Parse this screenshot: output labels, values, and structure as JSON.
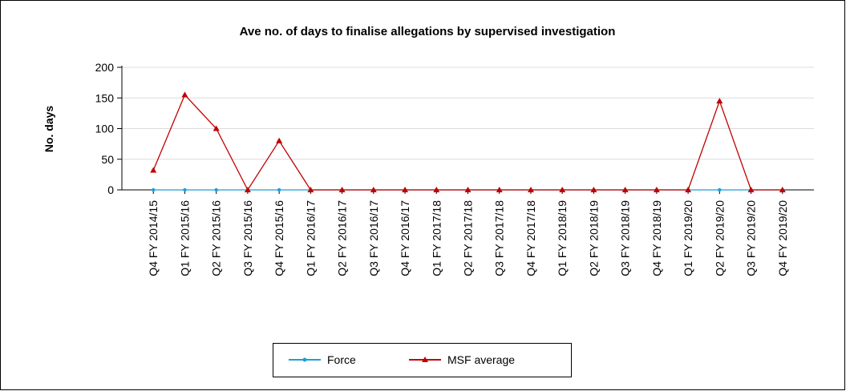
{
  "chart_data": {
    "type": "line",
    "title": "Ave no. of days to finalise allegations by supervised investigation",
    "y_label": "No. days",
    "categories": [
      "Q4 FY 2014/15",
      "Q1 FY 2015/16",
      "Q2 FY 2015/16",
      "Q3 FY 2015/16",
      "Q4 FY 2015/16",
      "Q1 FY 2016/17",
      "Q2 FY 2016/17",
      "Q3 FY 2016/17",
      "Q4 FY 2016/17",
      "Q1 FY 2017/18",
      "Q2 FY 2017/18",
      "Q3 FY 2017/18",
      "Q4 FY 2017/18",
      "Q1 FY 2018/19",
      "Q2 FY 2018/19",
      "Q3 FY 2018/19",
      "Q4 FY 2018/19",
      "Q1 FY 2019/20",
      "Q2 FY 2019/20",
      "Q3 FY 2019/20",
      "Q4 FY 2019/20"
    ],
    "series": [
      {
        "name": "Force",
        "color": "#1b9fd8",
        "values": [
          0,
          0,
          0,
          0,
          0,
          0,
          0,
          0,
          0,
          0,
          0,
          0,
          0,
          0,
          0,
          0,
          0,
          0,
          0,
          0,
          0
        ]
      },
      {
        "name": "MSF average",
        "color": "#c00000",
        "values": [
          32,
          155,
          100,
          0,
          80,
          0,
          0,
          0,
          0,
          0,
          0,
          0,
          0,
          0,
          0,
          0,
          0,
          0,
          145,
          0,
          0
        ]
      }
    ],
    "ylim": [
      0,
      200
    ],
    "yticks": [
      0,
      50,
      100,
      150,
      200
    ],
    "grid": true,
    "legend": "bottom"
  }
}
